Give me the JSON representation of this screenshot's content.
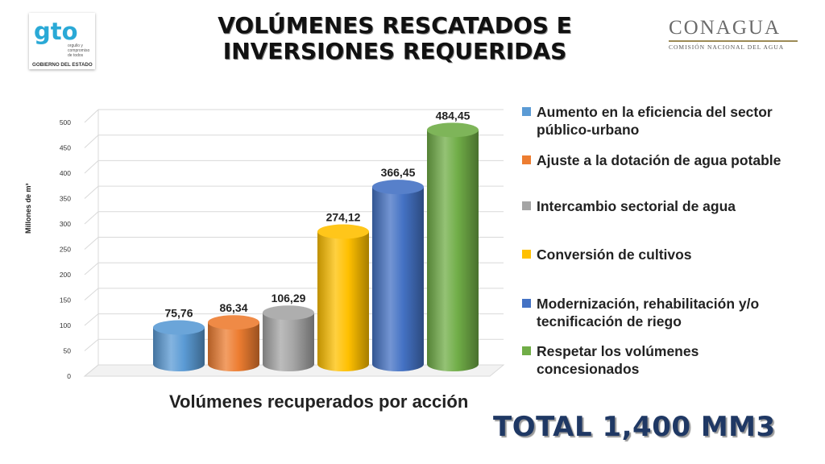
{
  "header": {
    "title_line1": "VOLÚMENES RESCATADOS E",
    "title_line2": "INVERSIONES REQUERIDAS"
  },
  "logos": {
    "gto": {
      "mark": "gto",
      "tagline1": "orgullo y",
      "tagline2": "compromiso",
      "tagline3": "de todos",
      "caption": "GOBIERNO DEL ESTADO"
    },
    "conagua": {
      "name": "CONAGUA",
      "subtitle": "COMISIÓN NACIONAL DEL AGUA"
    }
  },
  "chart_data": {
    "type": "bar",
    "categories": [
      "Aumento en la eficiencia del sector público-urbano",
      "Ajuste a la dotación de agua potable",
      "Intercambio sectorial de agua",
      "Conversión de cultivos",
      "Modernización, rehabilitación y/o tecnificación de riego",
      "Respetar los volúmenes concesionados"
    ],
    "values": [
      75.76,
      86.34,
      106.29,
      274.12,
      366.45,
      484.45
    ],
    "data_labels": [
      "75,76",
      "86,34",
      "106,29",
      "274,12",
      "366,45",
      "484,45"
    ],
    "colors": [
      "#5b9bd5",
      "#ed7d31",
      "#a5a5a5",
      "#ffc000",
      "#4472c4",
      "#70ad47"
    ],
    "ylim": [
      0,
      500
    ],
    "yticks": [
      0,
      50,
      100,
      150,
      200,
      250,
      300,
      350,
      400,
      450,
      500
    ],
    "ylabel": "Millones de m³",
    "xlabel": "Volúmenes recuperados por acción",
    "legend_position": "right",
    "grid": true
  },
  "footer": {
    "total": "TOTAL 1,400 MM3"
  }
}
